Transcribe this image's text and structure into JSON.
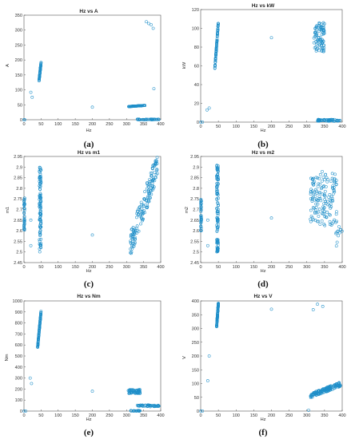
{
  "chart_data": [
    {
      "type": "scatter",
      "title": "Hz vs A",
      "xlabel": "Hz",
      "ylabel": "A",
      "caption": "(a)",
      "xlim": [
        0,
        400
      ],
      "ylim": [
        0,
        350
      ],
      "xticks": [
        "0",
        "50",
        "100",
        "150",
        "200",
        "250",
        "300",
        "350",
        "400"
      ],
      "yticks": [
        "0",
        "50",
        "100",
        "150",
        "200",
        "250",
        "300",
        "350"
      ],
      "color": "#1f8fc9",
      "clusters": [
        {
          "x": [
            44,
            50
          ],
          "y": [
            130,
            192
          ],
          "n": 70,
          "trend": true
        },
        {
          "x": [
            305,
            355
          ],
          "y": [
            44,
            48
          ],
          "n": 70,
          "trend": true
        },
        {
          "x": [
            330,
            395
          ],
          "y": [
            0,
            2
          ],
          "n": 45,
          "trend": false
        }
      ],
      "points": [
        [
          0,
          0
        ],
        [
          2,
          0
        ],
        [
          20,
          92
        ],
        [
          24,
          75
        ],
        [
          200,
          42
        ],
        [
          358,
          328
        ],
        [
          365,
          322
        ],
        [
          372,
          318
        ],
        [
          378,
          306
        ],
        [
          380,
          104
        ]
      ]
    },
    {
      "type": "scatter",
      "title": "Hz vs kW",
      "xlabel": "Hz",
      "ylabel": "kW",
      "caption": "(b)",
      "xlim": [
        0,
        400
      ],
      "ylim": [
        0,
        120
      ],
      "xticks": [
        "0",
        "50",
        "100",
        "150",
        "200",
        "250",
        "300",
        "350",
        "400"
      ],
      "yticks": [
        "0",
        "20",
        "40",
        "60",
        "80",
        "100",
        "120"
      ],
      "color": "#1f8fc9",
      "clusters": [
        {
          "x": [
            40,
            50
          ],
          "y": [
            57,
            107
          ],
          "n": 80,
          "trend": true
        },
        {
          "x": [
            320,
            350
          ],
          "y": [
            75,
            106
          ],
          "n": 90,
          "trend": false
        },
        {
          "x": [
            330,
            395
          ],
          "y": [
            1,
            3
          ],
          "n": 60,
          "trend": false
        }
      ],
      "points": [
        [
          0,
          0
        ],
        [
          5,
          0
        ],
        [
          18,
          13
        ],
        [
          24,
          15
        ],
        [
          200,
          90
        ]
      ]
    },
    {
      "type": "scatter",
      "title": "Hz vs m1",
      "xlabel": "Hz",
      "ylabel": "m1",
      "caption": "(c)",
      "xlim": [
        0,
        400
      ],
      "ylim": [
        2.45,
        2.95
      ],
      "xticks": [
        "0",
        "50",
        "100",
        "150",
        "200",
        "250",
        "300",
        "350",
        "400"
      ],
      "yticks": [
        "2.45",
        "2.5",
        "2.55",
        "2.6",
        "2.65",
        "2.7",
        "2.75",
        "2.8",
        "2.85",
        "2.9",
        "2.95"
      ],
      "color": "#1f8fc9",
      "clusters": [
        {
          "x": [
            0,
            2
          ],
          "y": [
            2.6,
            2.76
          ],
          "n": 40,
          "trend": false
        },
        {
          "x": [
            45,
            50
          ],
          "y": [
            2.5,
            2.91
          ],
          "n": 110,
          "trend": false
        },
        {
          "x": [
            310,
            390
          ],
          "y": [
            2.53,
            2.91
          ],
          "n": 160,
          "trend": true,
          "spread": 0.06
        }
      ],
      "points": [
        [
          20,
          2.65
        ],
        [
          20,
          2.53
        ],
        [
          200,
          2.58
        ]
      ]
    },
    {
      "type": "scatter",
      "title": "Hz vs m2",
      "xlabel": "Hz",
      "ylabel": "m2",
      "caption": "(d)",
      "xlim": [
        0,
        400
      ],
      "ylim": [
        2.45,
        2.95
      ],
      "xticks": [
        "0",
        "50",
        "100",
        "150",
        "200",
        "250",
        "300",
        "350",
        "400"
      ],
      "yticks": [
        "2.45",
        "2.5",
        "2.55",
        "2.6",
        "2.65",
        "2.7",
        "2.75",
        "2.8",
        "2.85",
        "2.9",
        "2.95"
      ],
      "color": "#1f8fc9",
      "clusters": [
        {
          "x": [
            0,
            2
          ],
          "y": [
            2.6,
            2.76
          ],
          "n": 40,
          "trend": false
        },
        {
          "x": [
            45,
            50
          ],
          "y": [
            2.5,
            2.91
          ],
          "n": 110,
          "trend": false
        },
        {
          "x": [
            310,
            385
          ],
          "y": [
            2.62,
            2.88
          ],
          "n": 150,
          "trend": false
        },
        {
          "x": [
            380,
            400
          ],
          "y": [
            2.52,
            2.62
          ],
          "n": 12,
          "trend": false
        }
      ],
      "points": [
        [
          20,
          2.65
        ],
        [
          20,
          2.53
        ],
        [
          200,
          2.66
        ]
      ]
    },
    {
      "type": "scatter",
      "title": "Hz vs Nm",
      "xlabel": "Hz",
      "ylabel": "Nm",
      "caption": "(e)",
      "xlim": [
        0,
        400
      ],
      "ylim": [
        0,
        1000
      ],
      "xticks": [
        "0",
        "50",
        "100",
        "150",
        "200",
        "250",
        "300",
        "350",
        "400"
      ],
      "yticks": [
        "0",
        "100",
        "200",
        "300",
        "400",
        "500",
        "600",
        "700",
        "800",
        "900",
        "1000"
      ],
      "color": "#1f8fc9",
      "clusters": [
        {
          "x": [
            40,
            50
          ],
          "y": [
            580,
            910
          ],
          "n": 90,
          "trend": true
        },
        {
          "x": [
            305,
            340
          ],
          "y": [
            160,
            195
          ],
          "n": 60,
          "trend": false
        },
        {
          "x": [
            330,
            395
          ],
          "y": [
            40,
            55
          ],
          "n": 50,
          "trend": false
        },
        {
          "x": [
            310,
            340
          ],
          "y": [
            0,
            5
          ],
          "n": 20,
          "trend": false
        }
      ],
      "points": [
        [
          0,
          0
        ],
        [
          5,
          0
        ],
        [
          18,
          300
        ],
        [
          22,
          250
        ],
        [
          200,
          180
        ]
      ]
    },
    {
      "type": "scatter",
      "title": "Hz vs V",
      "xlabel": "Hz",
      "ylabel": "V",
      "caption": "(f)",
      "xlim": [
        0,
        400
      ],
      "ylim": [
        0,
        400
      ],
      "xticks": [
        "0",
        "50",
        "100",
        "150",
        "200",
        "250",
        "300",
        "350",
        "400"
      ],
      "yticks": [
        "0",
        "50",
        "100",
        "150",
        "200",
        "250",
        "300",
        "350",
        "400"
      ],
      "color": "#1f8fc9",
      "clusters": [
        {
          "x": [
            45,
            50
          ],
          "y": [
            305,
            392
          ],
          "n": 80,
          "trend": true
        },
        {
          "x": [
            310,
            395
          ],
          "y": [
            55,
            98
          ],
          "n": 150,
          "trend": true,
          "spread": 8
        }
      ],
      "points": [
        [
          0,
          0
        ],
        [
          5,
          0
        ],
        [
          20,
          110
        ],
        [
          24,
          200
        ],
        [
          200,
          370
        ],
        [
          305,
          3
        ],
        [
          318,
          368
        ],
        [
          330,
          388
        ],
        [
          345,
          380
        ]
      ]
    }
  ]
}
